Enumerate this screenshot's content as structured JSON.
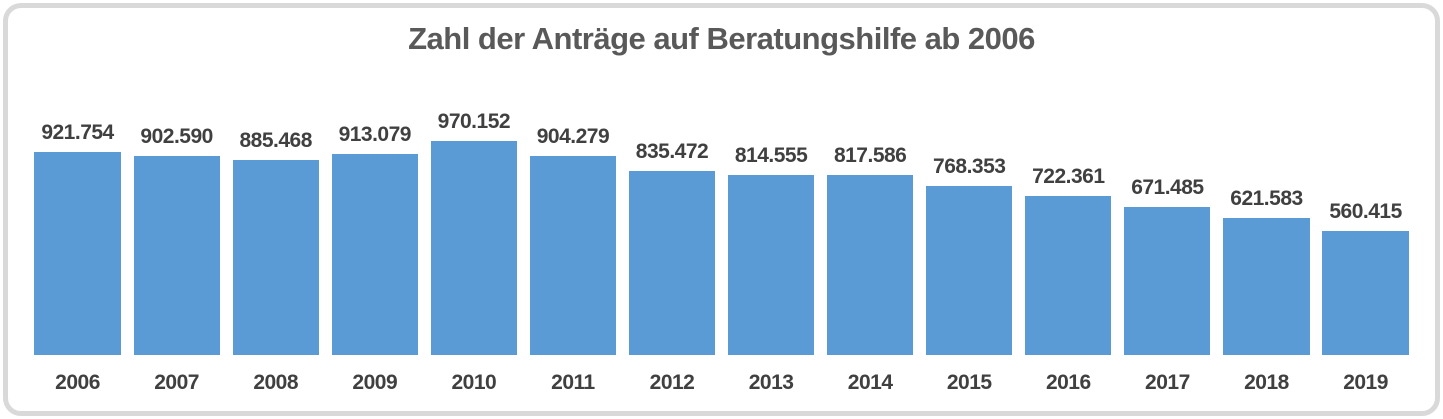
{
  "chart_data": {
    "type": "bar",
    "title": "Zahl der Anträge auf Beratungshilfe ab 2006",
    "xlabel": "",
    "ylabel": "",
    "categories": [
      "2006",
      "2007",
      "2008",
      "2009",
      "2010",
      "2011",
      "2012",
      "2013",
      "2014",
      "2015",
      "2016",
      "2017",
      "2018",
      "2019"
    ],
    "values": [
      921754,
      902590,
      885468,
      913079,
      970152,
      904279,
      835472,
      814555,
      817586,
      768353,
      722361,
      671485,
      621583,
      560415
    ],
    "value_labels": [
      "921.754",
      "902.590",
      "885.468",
      "913.079",
      "970.152",
      "904.279",
      "835.472",
      "814.555",
      "817.586",
      "768.353",
      "722.361",
      "671.485",
      "621.583",
      "560.415"
    ],
    "ylim": [
      0,
      970152
    ],
    "grid": false,
    "legend": false,
    "data_labels_position": "above-bars",
    "bar_color": "#5B9BD5",
    "title_color": "#595959",
    "label_color": "#404040",
    "frame_border_color": "#D9D9D9"
  }
}
